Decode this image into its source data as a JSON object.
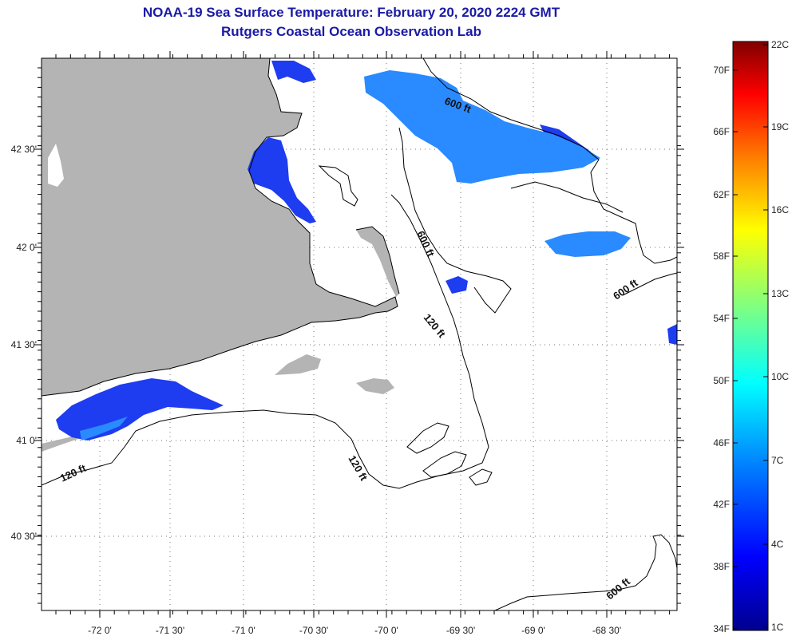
{
  "header": {
    "title": "NOAA-19 Sea Surface Temperature:  February 20, 2020 2224 GMT",
    "subtitle": "Rutgers Coastal Ocean Observation Lab"
  },
  "map": {
    "lat_labels": [
      "42 30'",
      "42 0'",
      "41 30'",
      "41 0'",
      "40 30'"
    ],
    "lon_labels": [
      "-72 0'",
      "-71 30'",
      "-71 0'",
      "-70 30'",
      "-70 0'",
      "-69 30'",
      "-69 0'",
      "-68 30'"
    ],
    "contour_labels": [
      {
        "text": "600 ft",
        "rot": 20
      },
      {
        "text": "600 ft",
        "rot": 65
      },
      {
        "text": "600 ft",
        "rot": -35
      },
      {
        "text": "120 ft",
        "rot": 50
      },
      {
        "text": "120 ft",
        "rot": 60
      },
      {
        "text": "120 ft",
        "rot": -25
      },
      {
        "text": "600 ft",
        "rot": -40
      }
    ],
    "colors": {
      "land": "#b4b4b4",
      "cold_sst": "#1e3cf0",
      "mid_sst": "#2a8aff"
    }
  },
  "colorbar": {
    "f_labels": [
      "70F",
      "66F",
      "62F",
      "58F",
      "54F",
      "50F",
      "46F",
      "42F",
      "38F",
      "34F"
    ],
    "c_labels": [
      "22C",
      "19C",
      "16C",
      "13C",
      "10C",
      "7C",
      "4C",
      "1C"
    ],
    "stops": [
      "#00008f",
      "#0000ff",
      "#0080ff",
      "#00ffff",
      "#80ff80",
      "#ffff00",
      "#ff8000",
      "#ff0000",
      "#800000"
    ]
  }
}
